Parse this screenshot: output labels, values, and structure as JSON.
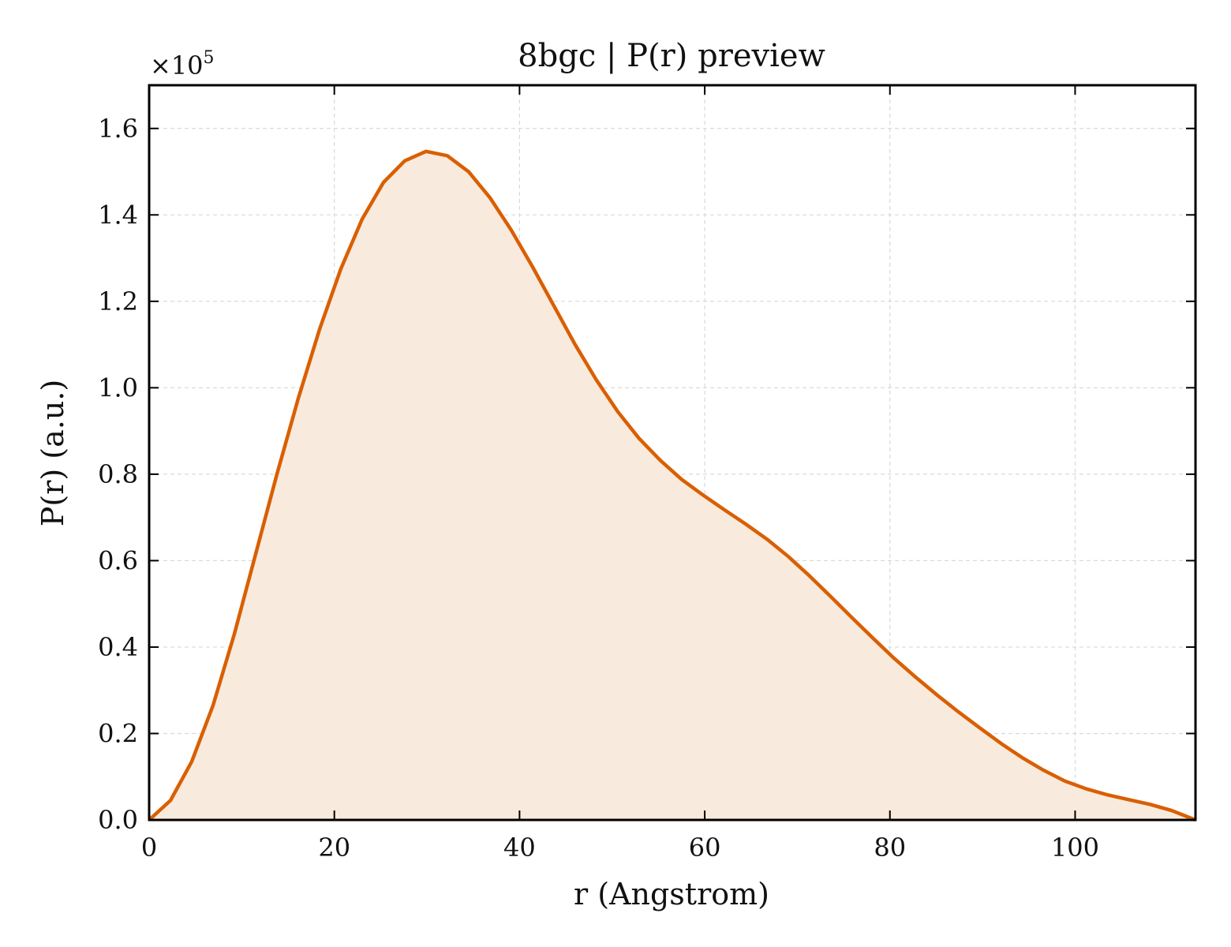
{
  "chart_data": {
    "type": "area",
    "title": "8bgc | P(r) preview",
    "xlabel": "r (Angstrom)",
    "ylabel": "P(r) (a.u.)",
    "y_multiplier_label": "×10",
    "y_multiplier_exponent": "5",
    "xlim": [
      0,
      113
    ],
    "ylim": [
      0,
      1.7
    ],
    "xticks": [
      0,
      20,
      40,
      60,
      80,
      100
    ],
    "xtick_labels": [
      "0",
      "20",
      "40",
      "60",
      "80",
      "100"
    ],
    "yticks": [
      0.0,
      0.2,
      0.4,
      0.6,
      0.8,
      1.0,
      1.2,
      1.4,
      1.6
    ],
    "ytick_labels": [
      "0.0",
      "0.2",
      "0.4",
      "0.6",
      "0.8",
      "1.0",
      "1.2",
      "1.4",
      "1.6"
    ],
    "grid": true,
    "colors": {
      "line": "#d95f02",
      "fill": "#f9eade",
      "grid": "#d9d9d9",
      "axis": "#000000"
    },
    "series": [
      {
        "x": [
          0,
          2.3,
          4.6,
          6.9,
          9.2,
          11.5,
          13.8,
          16.1,
          18.4,
          20.7,
          23.0,
          25.3,
          27.6,
          29.9,
          32.2,
          34.5,
          36.8,
          39.1,
          41.4,
          43.7,
          46.0,
          48.3,
          50.6,
          52.9,
          55.2,
          57.5,
          59.8,
          62.1,
          64.4,
          66.7,
          69.0,
          71.3,
          73.6,
          75.9,
          78.2,
          80.5,
          82.8,
          85.1,
          87.4,
          89.7,
          92.0,
          94.3,
          96.6,
          98.9,
          101.2,
          103.5,
          105.8,
          108.1,
          110.4,
          113.0
        ],
        "y": [
          0.0,
          0.045,
          0.135,
          0.265,
          0.43,
          0.615,
          0.8,
          0.975,
          1.135,
          1.275,
          1.39,
          1.475,
          1.525,
          1.547,
          1.537,
          1.5,
          1.44,
          1.365,
          1.28,
          1.19,
          1.1,
          1.018,
          0.945,
          0.883,
          0.832,
          0.788,
          0.752,
          0.718,
          0.685,
          0.65,
          0.61,
          0.565,
          0.517,
          0.468,
          0.42,
          0.373,
          0.33,
          0.289,
          0.25,
          0.213,
          0.177,
          0.144,
          0.115,
          0.09,
          0.072,
          0.058,
          0.047,
          0.036,
          0.022,
          0.0
        ]
      }
    ]
  }
}
